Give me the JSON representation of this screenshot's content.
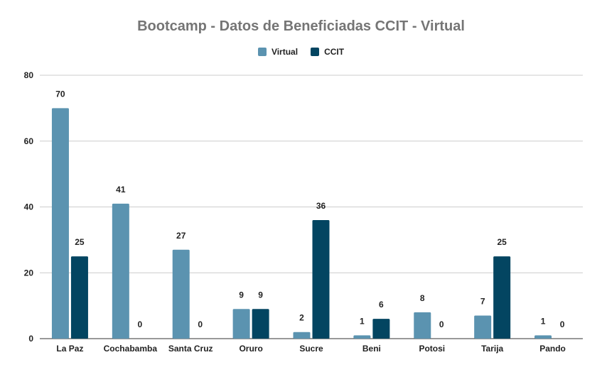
{
  "chart_data": {
    "type": "bar",
    "title": "Bootcamp - Datos de Beneficiadas CCIT - Virtual",
    "categories": [
      "La Paz",
      "Cochabamba",
      "Santa Cruz",
      "Oruro",
      "Sucre",
      "Beni",
      "Potosi",
      "Tarija",
      "Pando"
    ],
    "series": [
      {
        "name": "Virtual",
        "color": "#5b93b0",
        "values": [
          70,
          41,
          27,
          9,
          2,
          1,
          8,
          7,
          1
        ]
      },
      {
        "name": "CCIT",
        "color": "#034561",
        "values": [
          25,
          0,
          0,
          9,
          36,
          6,
          0,
          25,
          0
        ]
      }
    ],
    "xlabel": "",
    "ylabel": "",
    "ylim": [
      0,
      80
    ],
    "yticks": [
      0,
      20,
      40,
      60,
      80
    ],
    "grid": true,
    "legend_position": "top-center"
  }
}
